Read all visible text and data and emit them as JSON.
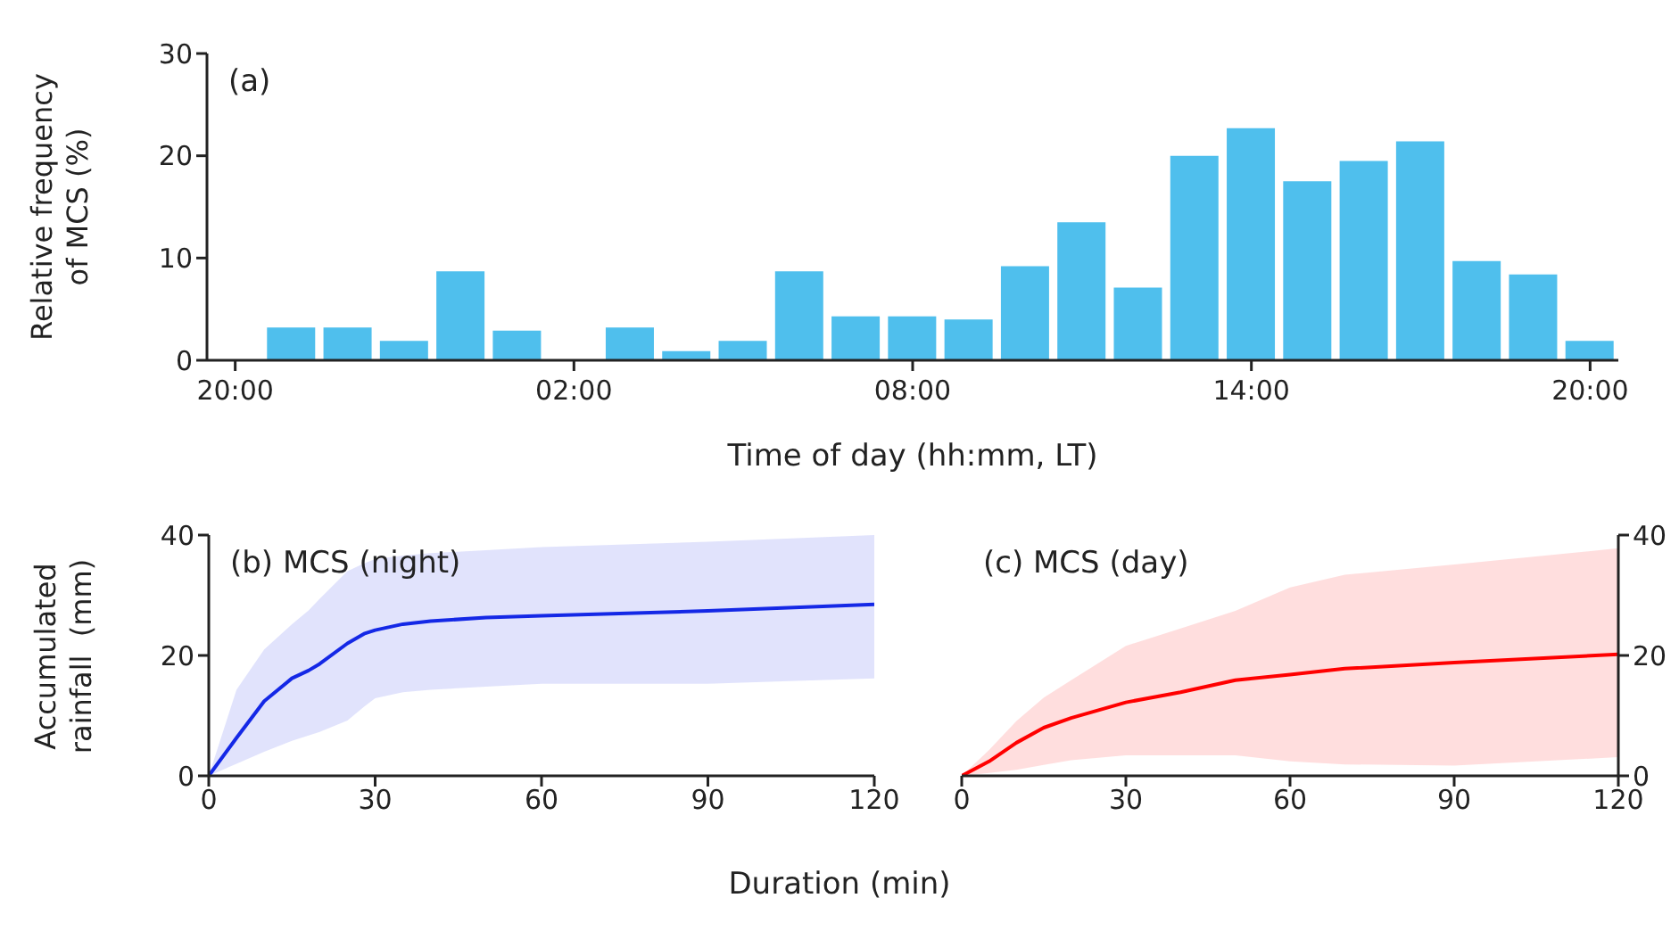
{
  "chart_data": [
    {
      "type": "bar",
      "title": "(a)",
      "xlabel": "Time of day (hh:mm, LT)",
      "ylabel": "Relative frequency of MCS (%)",
      "categories": [
        "20:00",
        null,
        null,
        null,
        null,
        null,
        "02:00",
        null,
        null,
        null,
        null,
        null,
        "08:00",
        null,
        null,
        null,
        null,
        null,
        "14:00",
        null,
        null,
        null,
        null,
        null,
        "20:00"
      ],
      "values": [
        0,
        3.2,
        3.2,
        1.9,
        8.7,
        2.9,
        0,
        3.2,
        0.9,
        1.9,
        8.7,
        4.3,
        4.3,
        4.0,
        9.2,
        13.5,
        7.1,
        20.0,
        22.7,
        17.5,
        19.5,
        21.4,
        9.7,
        8.4,
        1.9
      ],
      "color": "#4fbfed",
      "ylim": [
        0,
        30
      ],
      "yticks": [
        0,
        10,
        20,
        30
      ],
      "grid": false,
      "legend": false
    },
    {
      "type": "line",
      "title": "(b) MCS (night)",
      "xlabel": "Duration (min)",
      "ylabel": "Accumulated rainfall  (mm)",
      "x": [
        0,
        5,
        10,
        15,
        18,
        20,
        25,
        28,
        30,
        35,
        40,
        50,
        60,
        90,
        120
      ],
      "series": [
        {
          "color": "#1428e6",
          "values": [
            0,
            6.3,
            12.4,
            16.2,
            17.5,
            18.6,
            22,
            23.6,
            24.2,
            25.2,
            25.7,
            26.3,
            26.6,
            27.4,
            28.5
          ],
          "upper": [
            0,
            14.3,
            21,
            25.2,
            27.5,
            29.4,
            34,
            35.3,
            36,
            36.6,
            37,
            37.5,
            38,
            38.9,
            40
          ],
          "lower": [
            0,
            2,
            4,
            5.8,
            6.7,
            7.3,
            9.2,
            11.5,
            12.9,
            13.9,
            14.3,
            14.8,
            15.3,
            15.3,
            16.2
          ]
        }
      ],
      "xlim": [
        0,
        120
      ],
      "xticks": [
        0,
        30,
        60,
        90,
        120
      ],
      "ylim": [
        0,
        40
      ],
      "yticks": [
        0,
        20,
        40
      ],
      "grid": false,
      "legend": false
    },
    {
      "type": "line",
      "title": "(c) MCS (day)",
      "x": [
        0,
        5,
        10,
        15,
        20,
        30,
        40,
        50,
        60,
        70,
        90,
        120
      ],
      "series": [
        {
          "color": "#ff0000",
          "axis": "y2",
          "values": [
            0,
            2.4,
            5.5,
            8,
            9.6,
            12.2,
            13.9,
            15.9,
            16.8,
            17.8,
            18.8,
            20.2
          ],
          "upper": [
            0,
            4.3,
            9.1,
            13,
            15.9,
            21.6,
            24.5,
            27.4,
            31.3,
            33.4,
            35.1,
            37.8
          ],
          "lower": [
            0,
            0.5,
            1,
            1.8,
            2.6,
            3.4,
            3.4,
            3.4,
            2.4,
            1.9,
            1.7,
            3.1
          ]
        }
      ],
      "xlim": [
        0,
        120
      ],
      "xticks": [
        0,
        30,
        60,
        90,
        120
      ],
      "y2lim": [
        0,
        40
      ],
      "y2ticks": [
        0,
        20,
        40
      ],
      "grid": false,
      "legend": false
    }
  ]
}
